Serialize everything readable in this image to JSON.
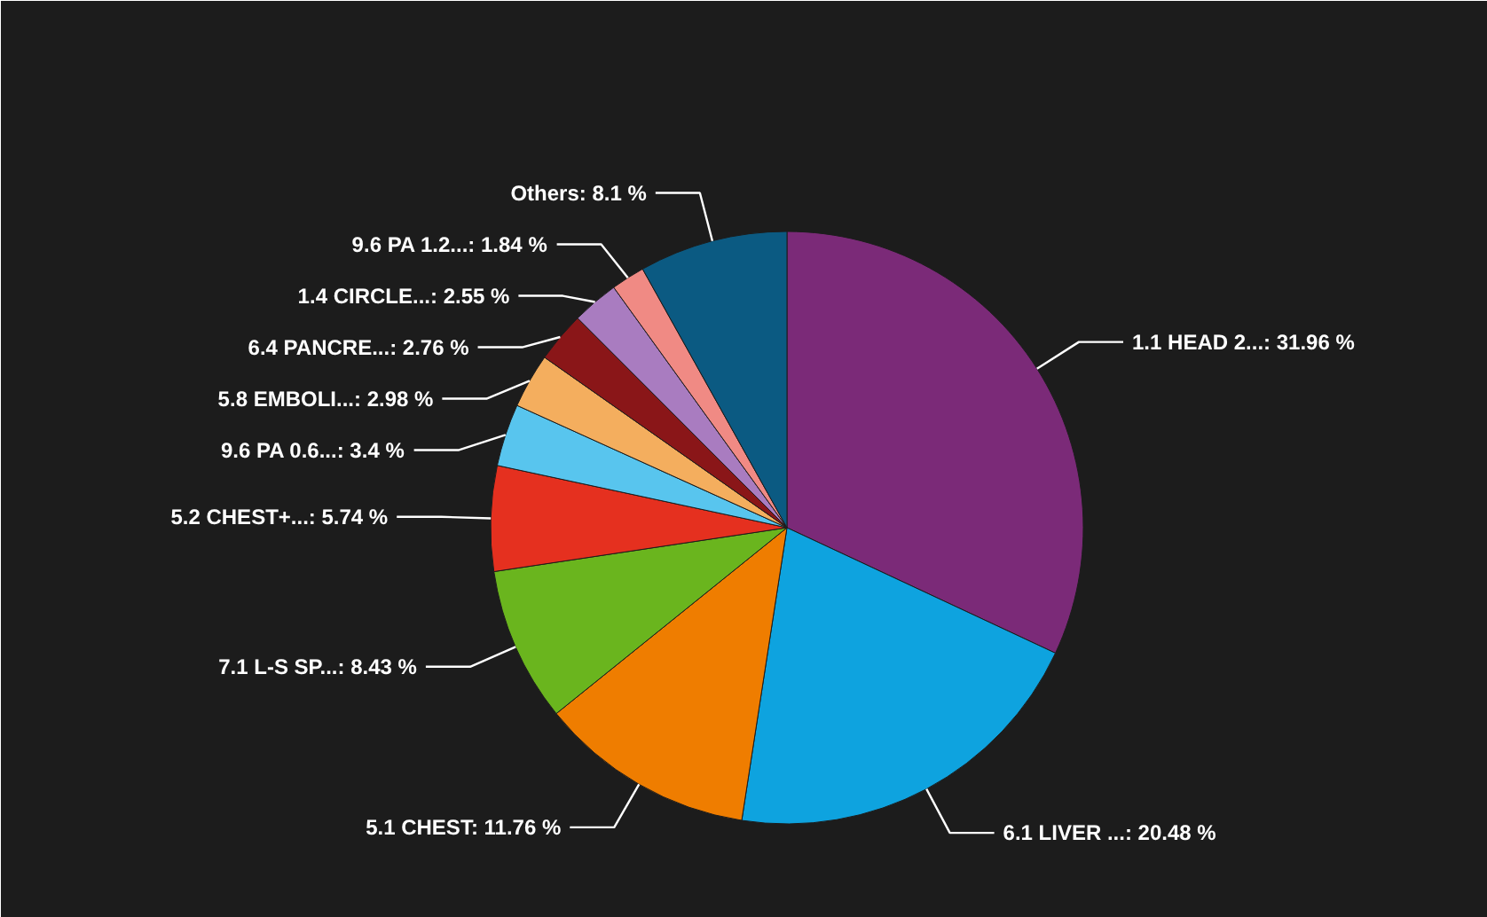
{
  "chart_data": {
    "type": "pie",
    "categories": [
      "1.1 HEAD 2...",
      "6.1 LIVER ...",
      "5.1 CHEST",
      "7.1 L-S SP...",
      "5.2 CHEST+...",
      "9.6 PA 0.6...",
      "5.8 EMBOLI...",
      "6.4 PANCRE...",
      "1.4 CIRCLE...",
      "9.6 PA 1.2...",
      "Others"
    ],
    "values": [
      31.96,
      20.48,
      11.76,
      8.43,
      5.74,
      3.4,
      2.98,
      2.76,
      2.55,
      1.84,
      8.1
    ],
    "value_labels": [
      "31.96 %",
      "20.48 %",
      "11.76 %",
      "8.43 %",
      "5.74 %",
      "3.4 %",
      "2.98 %",
      "2.76 %",
      "2.55 %",
      "1.84 %",
      "8.1 %"
    ],
    "colors": [
      "#7b2a78",
      "#0ea3df",
      "#ef7d00",
      "#6ab51e",
      "#e5301f",
      "#58c5ee",
      "#f4ae5e",
      "#8a1618",
      "#a97cc0",
      "#f08a84",
      "#0b5a82"
    ]
  }
}
